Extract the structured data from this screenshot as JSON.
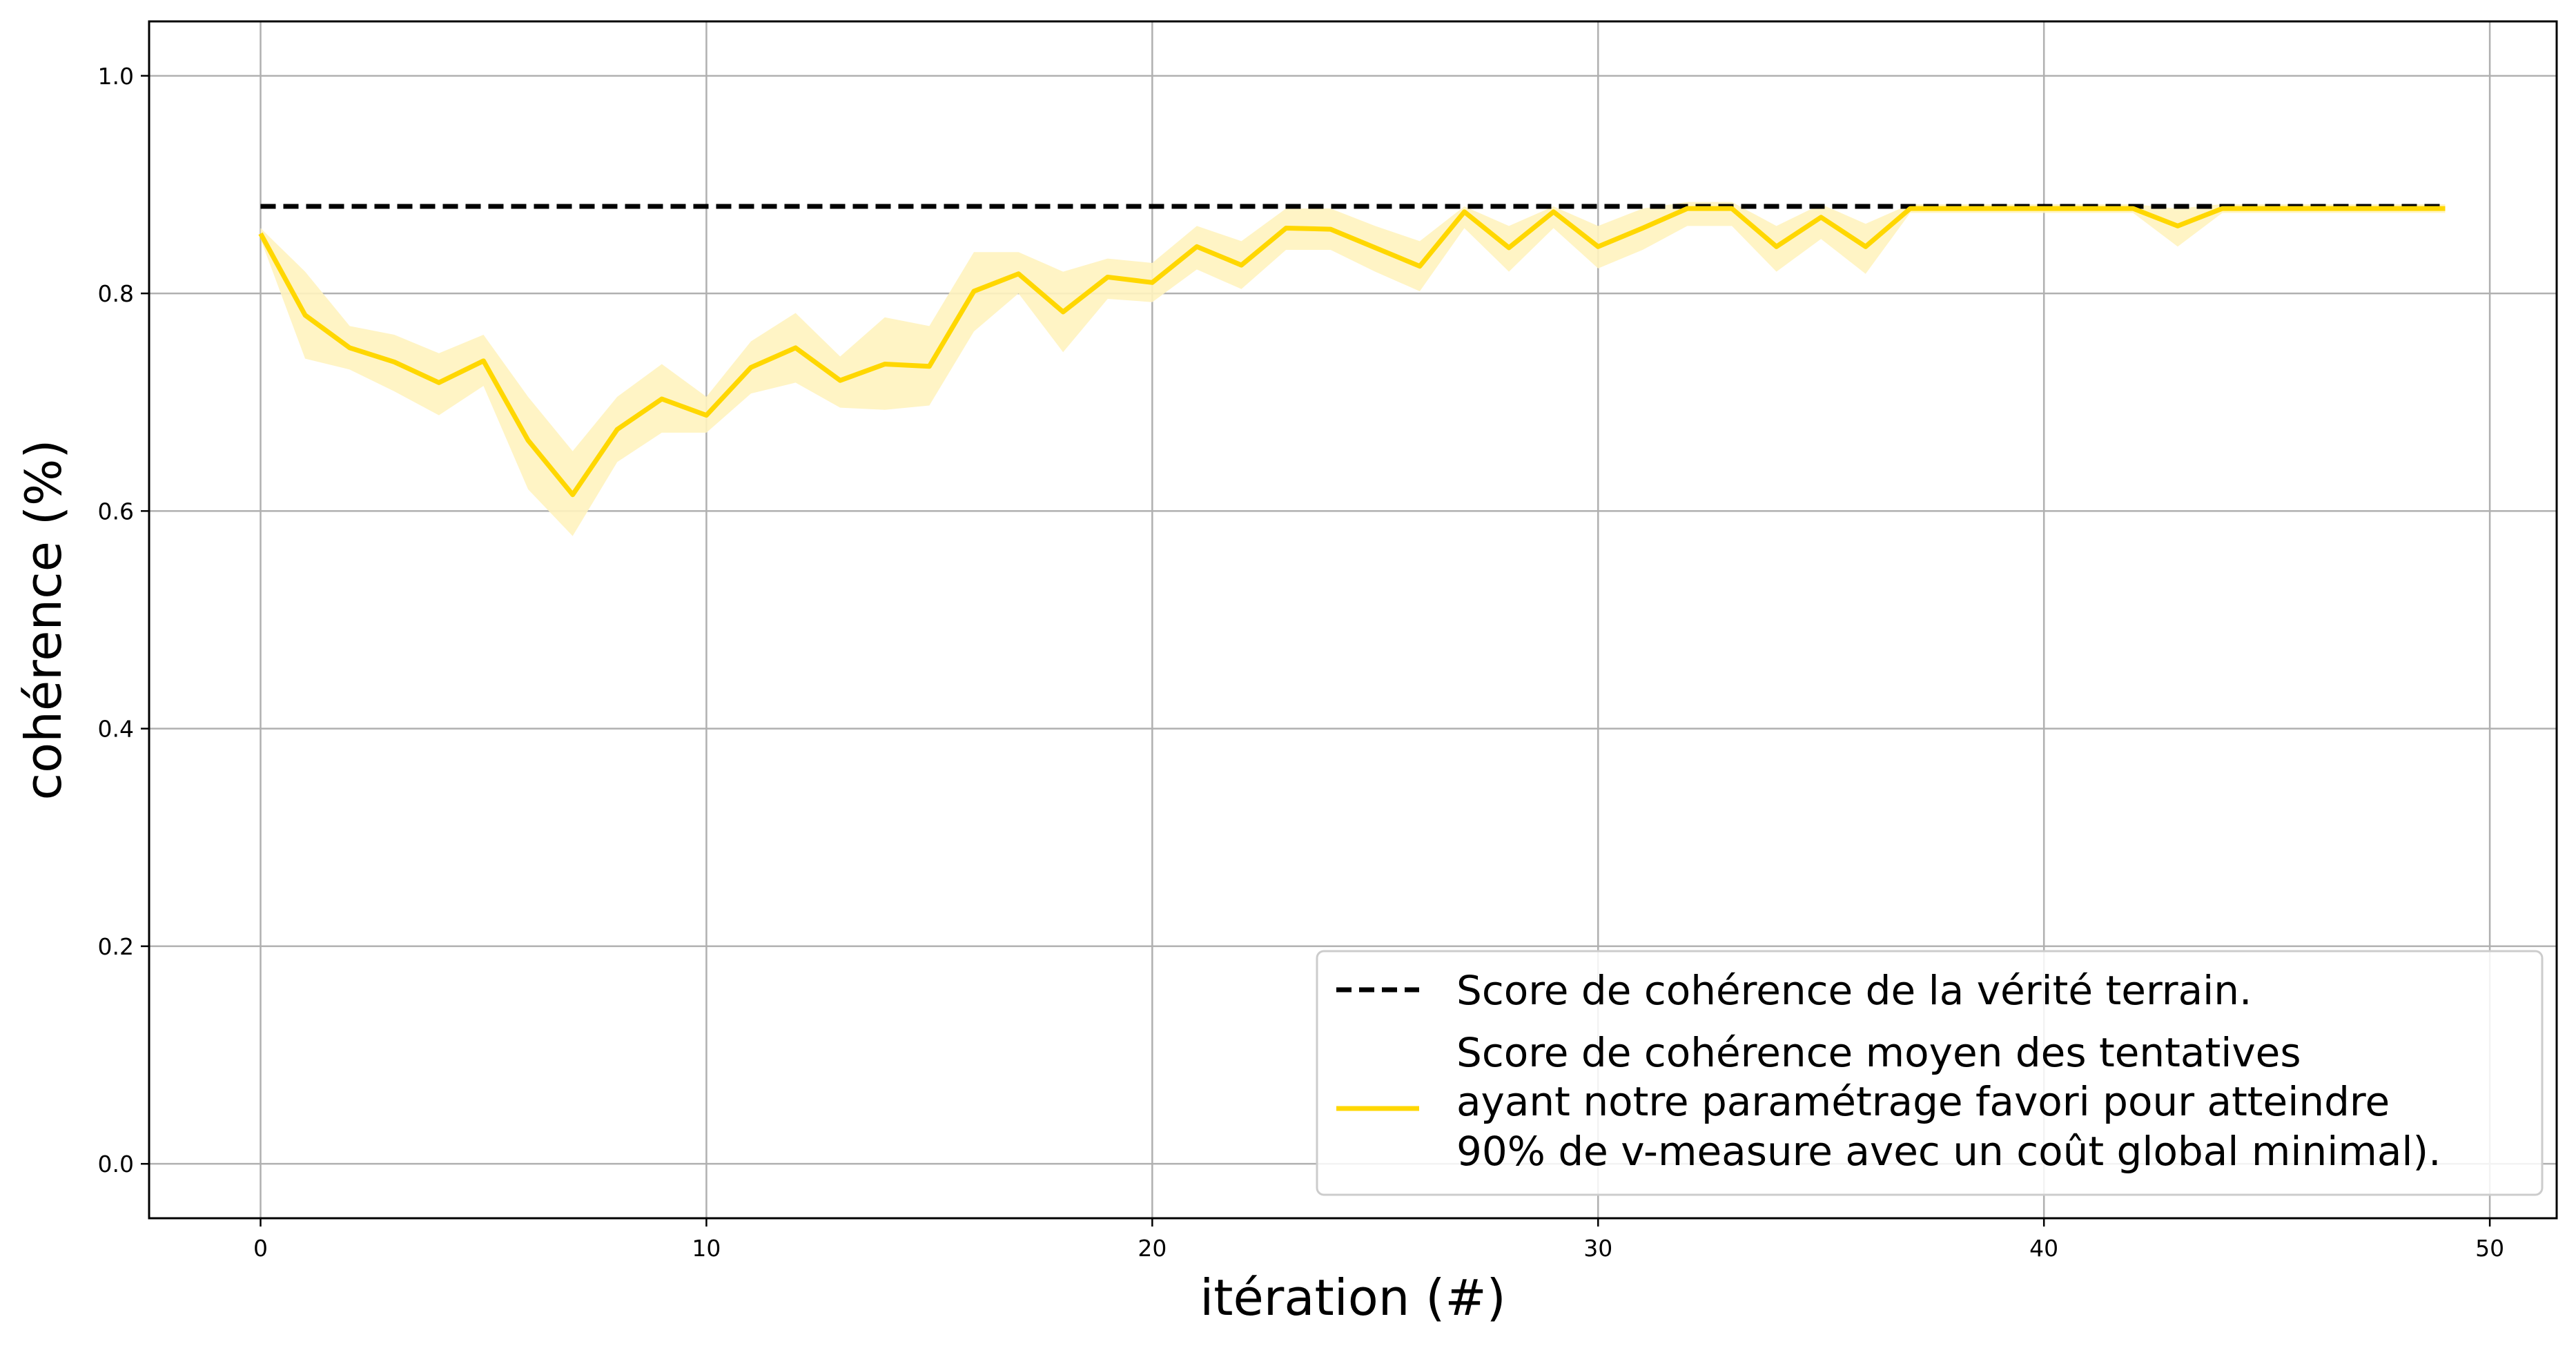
{
  "chart_data": {
    "type": "line",
    "xlabel": "itération (#)",
    "ylabel": "cohérence (%)",
    "xlim": [
      -2.5,
      51.5
    ],
    "ylim": [
      -0.05,
      1.05
    ],
    "xticks": [
      0,
      10,
      20,
      30,
      40,
      50
    ],
    "yticks": [
      0.0,
      0.2,
      0.4,
      0.6,
      0.8,
      1.0
    ],
    "grid": true,
    "legend_position": "lower-right",
    "series": [
      {
        "name": "Score de cohérence de la vérité terrain.",
        "style": "dashed",
        "color": "#000000",
        "x": [
          0,
          49
        ],
        "y": [
          0.88,
          0.88
        ]
      },
      {
        "name_lines": [
          "Score de cohérence moyen des tentatives",
          "ayant notre paramétrage favori pour atteindre",
          "90% de v-measure avec un coût global minimal)."
        ],
        "style": "solid",
        "color": "#FFD700",
        "band_color": "#FFF3BF",
        "x": [
          0,
          1,
          2,
          3,
          4,
          5,
          6,
          7,
          8,
          9,
          10,
          11,
          12,
          13,
          14,
          15,
          16,
          17,
          18,
          19,
          20,
          21,
          22,
          23,
          24,
          25,
          26,
          27,
          28,
          29,
          30,
          31,
          32,
          33,
          34,
          35,
          36,
          37,
          38,
          39,
          40,
          41,
          42,
          43,
          44,
          45,
          46,
          47,
          48,
          49
        ],
        "y": [
          0.855,
          0.78,
          0.75,
          0.737,
          0.718,
          0.738,
          0.665,
          0.615,
          0.675,
          0.703,
          0.688,
          0.732,
          0.75,
          0.72,
          0.735,
          0.733,
          0.802,
          0.818,
          0.783,
          0.815,
          0.81,
          0.843,
          0.826,
          0.86,
          0.859,
          0.842,
          0.825,
          0.875,
          0.842,
          0.875,
          0.843,
          0.86,
          0.878,
          0.878,
          0.843,
          0.87,
          0.843,
          0.878,
          0.878,
          0.878,
          0.878,
          0.878,
          0.878,
          0.862,
          0.878,
          0.878,
          0.878,
          0.878,
          0.878,
          0.878
        ],
        "y_lower": [
          0.85,
          0.74,
          0.73,
          0.71,
          0.688,
          0.715,
          0.62,
          0.577,
          0.645,
          0.672,
          0.672,
          0.708,
          0.718,
          0.695,
          0.693,
          0.697,
          0.765,
          0.8,
          0.746,
          0.795,
          0.792,
          0.822,
          0.804,
          0.84,
          0.84,
          0.82,
          0.802,
          0.86,
          0.82,
          0.86,
          0.823,
          0.84,
          0.862,
          0.862,
          0.82,
          0.85,
          0.818,
          0.874,
          0.874,
          0.874,
          0.874,
          0.874,
          0.874,
          0.843,
          0.874,
          0.874,
          0.874,
          0.874,
          0.874,
          0.874
        ],
        "y_upper": [
          0.86,
          0.82,
          0.77,
          0.762,
          0.745,
          0.762,
          0.705,
          0.655,
          0.705,
          0.735,
          0.705,
          0.756,
          0.782,
          0.742,
          0.778,
          0.77,
          0.838,
          0.838,
          0.82,
          0.832,
          0.828,
          0.862,
          0.848,
          0.878,
          0.878,
          0.862,
          0.848,
          0.88,
          0.862,
          0.88,
          0.862,
          0.878,
          0.884,
          0.884,
          0.862,
          0.882,
          0.864,
          0.882,
          0.882,
          0.882,
          0.882,
          0.882,
          0.882,
          0.878,
          0.882,
          0.882,
          0.882,
          0.882,
          0.882,
          0.882
        ]
      }
    ]
  }
}
